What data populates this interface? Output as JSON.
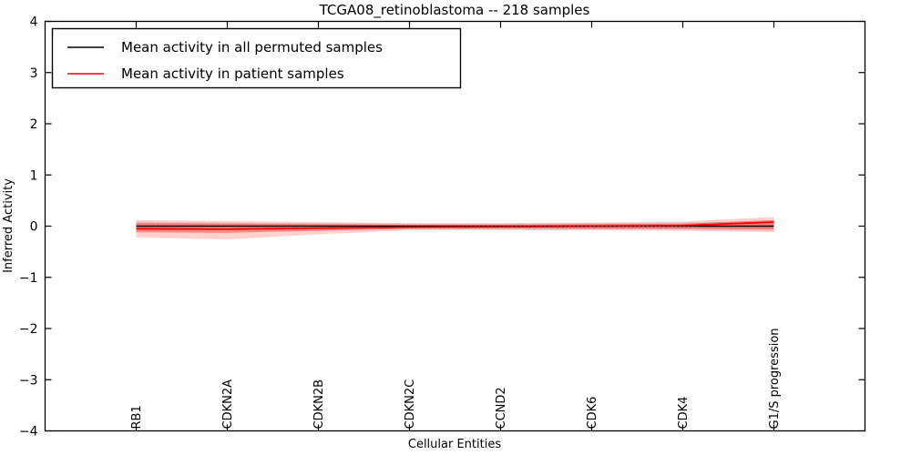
{
  "chart_data": {
    "type": "line",
    "title": "TCGA08_retinoblastoma -- 218 samples",
    "xlabel": "Cellular Entities",
    "ylabel": "Inferred Activity",
    "ylim": [
      -4,
      4
    ],
    "ytick_values": [
      4,
      3,
      2,
      1,
      0,
      -1,
      -2,
      -3,
      -4
    ],
    "ytick_labels": [
      "4",
      "3",
      "2",
      "1",
      "0",
      "−1",
      "−2",
      "−3",
      "−4"
    ],
    "categories": [
      "RB1",
      "CDKN2A",
      "CDKN2B",
      "CDKN2C",
      "CCND2",
      "CDK6",
      "CDK4",
      "G1/S progression"
    ],
    "series": [
      {
        "name": "Mean activity in all permuted samples",
        "color": "#000000",
        "linestyle": "solid",
        "linewidth": 1.2,
        "values": [
          0,
          0,
          0,
          0,
          0,
          0,
          0,
          0
        ]
      },
      {
        "name": "Mean activity in patient samples",
        "color": "#ff0000",
        "linestyle": "solid",
        "linewidth": 1.8,
        "values": [
          -0.05,
          -0.06,
          -0.04,
          -0.02,
          -0.01,
          0.0,
          0.01,
          0.08
        ]
      }
    ],
    "zero_line": {
      "value": 0,
      "color": "#000000",
      "linestyle": "dotted",
      "linewidth": 1.2
    },
    "bands": [
      {
        "name": "permuted-samples-std",
        "color": "#999999",
        "opacity": 0.28,
        "upper": [
          0.09,
          0.07,
          0.06,
          0.05,
          0.05,
          0.06,
          0.07,
          0.09
        ],
        "lower": [
          -0.09,
          -0.07,
          -0.06,
          -0.05,
          -0.05,
          -0.06,
          -0.07,
          -0.09
        ]
      },
      {
        "name": "patient-samples-std-outer",
        "color": "#ff0000",
        "opacity": 0.18,
        "upper": [
          0.12,
          0.1,
          0.08,
          0.06,
          0.06,
          0.07,
          0.09,
          0.18
        ],
        "lower": [
          -0.22,
          -0.26,
          -0.16,
          -0.08,
          -0.08,
          -0.08,
          -0.09,
          -0.12
        ]
      },
      {
        "name": "patient-samples-std-inner",
        "color": "#ff0000",
        "opacity": 0.35,
        "upper": [
          0.06,
          0.05,
          0.04,
          0.03,
          0.03,
          0.04,
          0.05,
          0.12
        ],
        "lower": [
          -0.12,
          -0.13,
          -0.09,
          -0.05,
          -0.05,
          -0.05,
          -0.05,
          -0.06
        ]
      }
    ],
    "legend": {
      "position": "upper-left"
    },
    "grid": false,
    "background": "#ffffff",
    "frame_color": "#000000"
  }
}
